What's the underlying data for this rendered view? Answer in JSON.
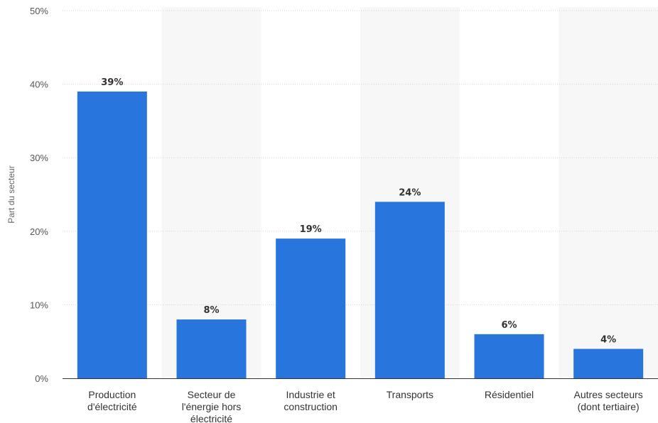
{
  "chart_data": {
    "type": "bar",
    "title": "",
    "xlabel": "",
    "ylabel": "Part du secteur",
    "categories": [
      [
        "Production",
        "d'électricité"
      ],
      [
        "Secteur de",
        "l'énergie hors",
        "électricité"
      ],
      [
        "Industrie et",
        "construction"
      ],
      [
        "Transports"
      ],
      [
        "Résidentiel"
      ],
      [
        "Autres secteurs",
        "(dont tertiaire)"
      ]
    ],
    "values": [
      39,
      8,
      19,
      24,
      6,
      4
    ],
    "data_labels": [
      "39%",
      "8%",
      "19%",
      "24%",
      "6%",
      "4%"
    ],
    "ylim": [
      0,
      50
    ],
    "yticks": [
      0,
      10,
      20,
      30,
      40,
      50
    ],
    "ytick_labels": [
      "0%",
      "10%",
      "20%",
      "30%",
      "40%",
      "50%"
    ],
    "unit": "%",
    "grid": true,
    "alternating_column_shading": true,
    "legend": "none",
    "colors": {
      "bar": "#2876dd",
      "band": "#f7f7f7",
      "grid": "#d4d4d4",
      "axis": "#333333"
    }
  }
}
